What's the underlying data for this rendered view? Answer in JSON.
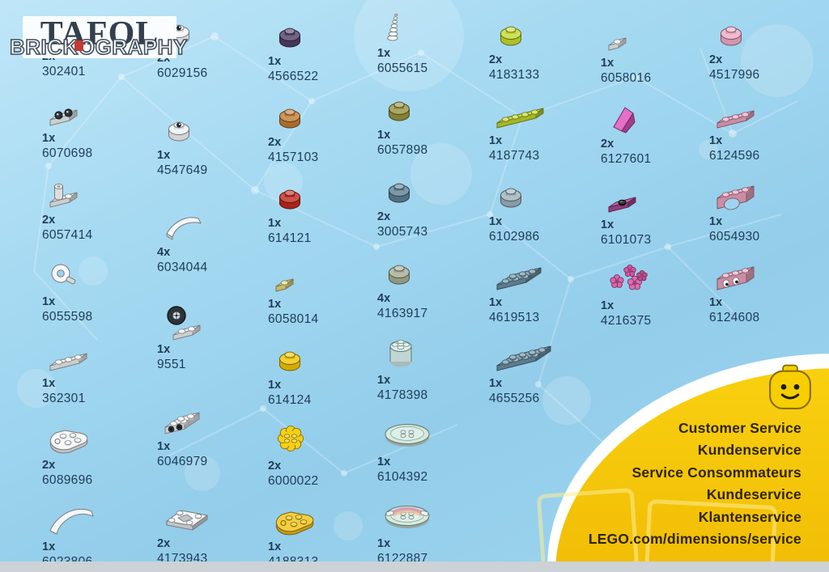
{
  "watermark": {
    "title": "TAFOL",
    "subtitle": "BRICKOGRAPHY"
  },
  "service": {
    "lines": [
      "Customer Service",
      "Kundenservice",
      "Service Consommateurs",
      "Kundeservice",
      "Klantenservice",
      "LEGO.com/dimensions/service"
    ]
  },
  "colors": {
    "background": "#9ed5ef",
    "accent_yellow": "#f6c70a",
    "label_text": "#1e3c55",
    "service_text": "#2e2503"
  },
  "parts_columns": [
    {
      "items": [
        {
          "qty": "2x",
          "id": "302401",
          "shape": "plate",
          "cols": 2,
          "rows": 1,
          "color": "#f3f6f8"
        },
        {
          "qty": "1x",
          "id": "6070698",
          "shape": "camera-plate",
          "color": "#f3f6f8"
        },
        {
          "qty": "2x",
          "id": "6057414",
          "shape": "tube-plate",
          "color": "#f3f6f8"
        },
        {
          "qty": "1x",
          "id": "6055598",
          "shape": "pin-round",
          "color": "#f3f6f8"
        },
        {
          "qty": "1x",
          "id": "362301",
          "shape": "plate",
          "cols": 3,
          "rows": 1,
          "color": "#f3f6f8"
        },
        {
          "qty": "2x",
          "id": "6089696",
          "shape": "egg-plate",
          "color": "#f3f6f8"
        },
        {
          "qty": "1x",
          "id": "6023806",
          "shape": "curved-arch",
          "color": "#f3f6f8"
        }
      ]
    },
    {
      "items": [
        {
          "qty": "2x",
          "id": "6029156",
          "shape": "eye-stud",
          "color": "#f3f6f8"
        },
        {
          "qty": "1x",
          "id": "4547649",
          "shape": "eye-stud",
          "color": "#eef1f3"
        },
        {
          "qty": "4x",
          "id": "6034044",
          "shape": "curved-slope",
          "color": "#f3f6f8"
        },
        {
          "qty": "1x",
          "id": "9551",
          "shape": "wheel-bracket",
          "color": "#f3f6f8"
        },
        {
          "qty": "1x",
          "id": "6046979",
          "shape": "side-stud-plate",
          "color": "#f3f6f8"
        },
        {
          "qty": "2x",
          "id": "4173943",
          "shape": "mudguard",
          "color": "#f3f6f8"
        }
      ]
    },
    {
      "items": [
        {
          "qty": "1x",
          "id": "4566522",
          "shape": "stud",
          "color": "#4e3d66"
        },
        {
          "qty": "2x",
          "id": "4157103",
          "shape": "stud",
          "color": "#c07a33"
        },
        {
          "qty": "1x",
          "id": "614121",
          "shape": "stud",
          "color": "#c1271b"
        },
        {
          "qty": "1x",
          "id": "6058014",
          "shape": "plate",
          "cols": 1,
          "rows": 1,
          "color": "#ecdd85"
        },
        {
          "qty": "1x",
          "id": "614124",
          "shape": "stud",
          "color": "#f0c400"
        },
        {
          "qty": "2x",
          "id": "6000022",
          "shape": "flower-plate",
          "color": "#f6cf17"
        },
        {
          "qty": "1x",
          "id": "4188313",
          "shape": "egg-plate",
          "color": "#f2c51d"
        }
      ]
    },
    {
      "items": [
        {
          "qty": "1x",
          "id": "6055615",
          "shape": "horn",
          "color": "#f3f6f8"
        },
        {
          "qty": "1x",
          "id": "6057898",
          "shape": "stud",
          "color": "#96913d"
        },
        {
          "qty": "2x",
          "id": "3005743",
          "shape": "stud",
          "color": "#5d7f94"
        },
        {
          "qty": "4x",
          "id": "4163917",
          "shape": "stud",
          "color": "#a4ad92"
        },
        {
          "qty": "1x",
          "id": "4178398",
          "shape": "round-brick",
          "color": "#d9efe9"
        },
        {
          "qty": "1x",
          "id": "6104392",
          "shape": "dish",
          "color": "#cfeadd"
        },
        {
          "qty": "1x",
          "id": "6122887",
          "shape": "rainbow-dish",
          "color": "#cfeadd"
        }
      ]
    },
    {
      "items": [
        {
          "qty": "2x",
          "id": "4183133",
          "shape": "stud",
          "color": "#c3d92e"
        },
        {
          "qty": "1x",
          "id": "4187743",
          "shape": "plate",
          "cols": 4,
          "rows": 1,
          "color": "#c3d92e"
        },
        {
          "qty": "1x",
          "id": "6102986",
          "shape": "stud",
          "color": "#9cb0bc"
        },
        {
          "qty": "1x",
          "id": "4619513",
          "shape": "plate",
          "cols": 3,
          "rows": 2,
          "color": "#6e94a8"
        },
        {
          "qty": "1x",
          "id": "4655256",
          "shape": "plate",
          "cols": 4,
          "rows": 2,
          "color": "#6e94a8"
        }
      ]
    },
    {
      "items": [
        {
          "qty": "1x",
          "id": "6058016",
          "shape": "plate",
          "cols": 1,
          "rows": 1,
          "color": "#f3f6f8"
        },
        {
          "qty": "2x",
          "id": "6127601",
          "shape": "slope",
          "color": "#e156be"
        },
        {
          "qty": "1x",
          "id": "6101073",
          "shape": "jumper",
          "color": "#b04697"
        },
        {
          "qty": "1x",
          "id": "4216375",
          "shape": "flower-stack",
          "color": "#d4549f"
        }
      ]
    },
    {
      "items": [
        {
          "qty": "2x",
          "id": "4517996",
          "shape": "stud",
          "color": "#efa9c5"
        },
        {
          "qty": "1x",
          "id": "6124596",
          "shape": "plate",
          "cols": 3,
          "rows": 1,
          "color": "#efa9c5"
        },
        {
          "qty": "1x",
          "id": "6054930",
          "shape": "brick-arch",
          "color": "#efa9c5"
        },
        {
          "qty": "1x",
          "id": "6124608",
          "shape": "face-brick",
          "color": "#efa9c5"
        }
      ]
    }
  ]
}
